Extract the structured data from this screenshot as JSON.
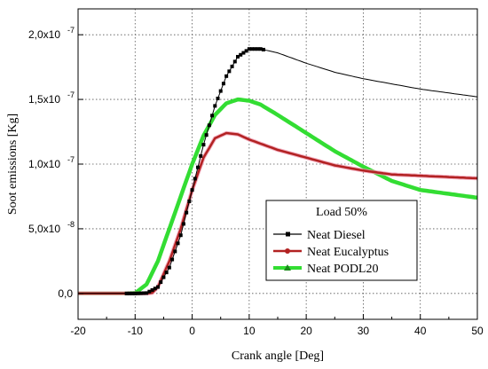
{
  "chart_data": {
    "type": "line",
    "xlabel": "Crank angle [Deg]",
    "ylabel": "Soot emissions [Kg]",
    "xlim": [
      -20,
      50
    ],
    "ylim": [
      -2e-08,
      2.2e-07
    ],
    "x_ticks": [
      -20,
      -10,
      0,
      10,
      20,
      30,
      40,
      50
    ],
    "x_tick_labels": [
      "-20",
      "-10",
      "0",
      "10",
      "20",
      "30",
      "40",
      "50"
    ],
    "y_ticks": [
      0,
      5e-08,
      1e-07,
      1.5e-07,
      2e-07
    ],
    "y_tick_labels": [
      "0,0",
      "5,0x10",
      "1,0x10",
      "1,5x10",
      "2,0x10"
    ],
    "y_tick_exponents": [
      "",
      "-8",
      "-7",
      "-7",
      "-7"
    ],
    "grid": true,
    "legend": {
      "title": "Load 50%",
      "placement": "lower-right",
      "entries": [
        "Neat Diesel",
        "Neat Eucalyptus",
        "Neat PODL20"
      ]
    },
    "series": [
      {
        "name": "Neat Diesel",
        "color": "#000000",
        "marker": "square",
        "x": [
          -20,
          -12,
          -10,
          -8,
          -6,
          -4,
          -2,
          0,
          2,
          4,
          6,
          8,
          10,
          12,
          15,
          20,
          25,
          30,
          35,
          40,
          45,
          50
        ],
        "y": [
          0,
          0,
          0,
          3e-10,
          5e-09,
          2e-08,
          4.5e-08,
          8e-08,
          1.15e-07,
          1.45e-07,
          1.68e-07,
          1.83e-07,
          1.89e-07,
          1.89e-07,
          1.86e-07,
          1.78e-07,
          1.71e-07,
          1.66e-07,
          1.62e-07,
          1.58e-07,
          1.55e-07,
          1.52e-07
        ]
      },
      {
        "name": "Neat Eucalyptus",
        "color": "#b22222",
        "marker": "circle",
        "x": [
          -20,
          -10,
          -8,
          -7,
          -6,
          -4,
          -2,
          0,
          2,
          4,
          6,
          8,
          10,
          15,
          20,
          25,
          30,
          35,
          40,
          45,
          50
        ],
        "y": [
          0,
          0,
          0,
          5e-10,
          5e-09,
          2.5e-08,
          5e-08,
          8e-08,
          1.05e-07,
          1.2e-07,
          1.24e-07,
          1.23e-07,
          1.19e-07,
          1.11e-07,
          1.05e-07,
          9.9e-08,
          9.5e-08,
          9.2e-08,
          9.1e-08,
          9e-08,
          8.9e-08
        ]
      },
      {
        "name": "Neat PODL20",
        "color": "#33dd33",
        "marker": "triangle",
        "x": [
          -20,
          -12,
          -10,
          -8,
          -6,
          -4,
          -2,
          0,
          2,
          4,
          6,
          8,
          10,
          12,
          15,
          20,
          25,
          30,
          35,
          40,
          45,
          50
        ],
        "y": [
          0,
          0,
          3e-10,
          7e-09,
          2.5e-08,
          5e-08,
          7.5e-08,
          1e-07,
          1.22e-07,
          1.38e-07,
          1.47e-07,
          1.5e-07,
          1.49e-07,
          1.46e-07,
          1.38e-07,
          1.24e-07,
          1.1e-07,
          9.8e-08,
          8.7e-08,
          8e-08,
          7.7e-08,
          7.4e-08
        ]
      }
    ]
  }
}
